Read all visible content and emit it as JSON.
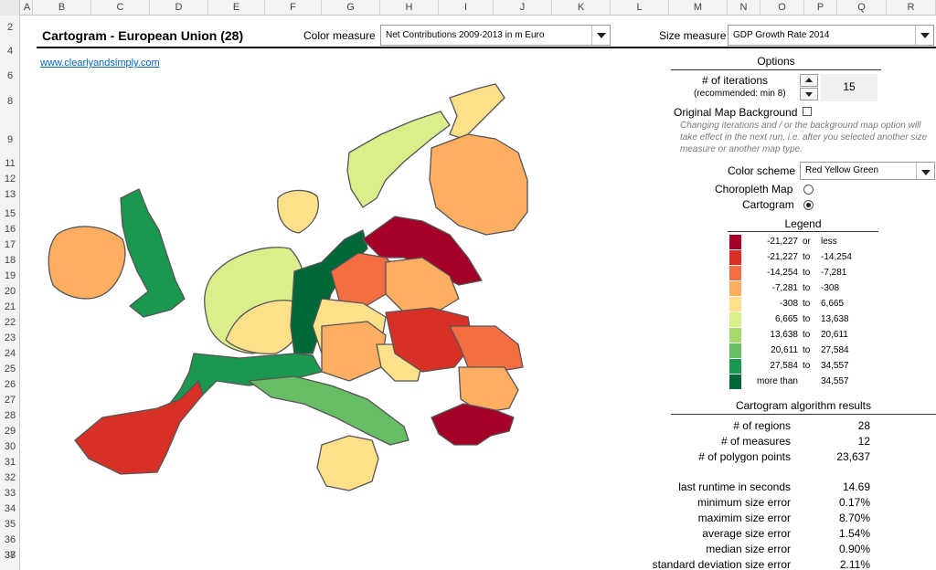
{
  "columns": [
    "A",
    "B",
    "C",
    "D",
    "E",
    "F",
    "G",
    "H",
    "I",
    "J",
    "K",
    "L",
    "M",
    "N",
    "O",
    "P",
    "Q",
    "R"
  ],
  "rows": [
    "2",
    "4",
    "6",
    "8",
    "9",
    "11",
    "12",
    "13",
    "15",
    "16",
    "17",
    "18",
    "19",
    "20",
    "21",
    "22",
    "23",
    "24",
    "25",
    "26",
    "27",
    "28",
    "29",
    "30",
    "31",
    "32",
    "33",
    "34",
    "35",
    "36",
    "37",
    "38"
  ],
  "header": {
    "title": "Cartogram - European Union (28)",
    "color_measure_label": "Color measure",
    "color_measure_value": "Net Contributions 2009-2013 in m Euro",
    "size_measure_label": "Size measure",
    "size_measure_value": "GDP Growth Rate 2014"
  },
  "link": "www.clearlyandsimply.com",
  "options": {
    "title": "Options",
    "iterations_label": "# of iterations",
    "iterations_hint": "(recommended: min 8)",
    "iterations_value": "15",
    "background_label": "Original Map Background",
    "note": "Changing iterations and / or the background map option will take effect in the next run, i.e. after you selected another size measure or another map type.",
    "color_scheme_label": "Color scheme",
    "color_scheme_value": "Red Yellow Green",
    "choropleth_label": "Choropleth Map",
    "cartogram_label": "Cartogram"
  },
  "legend": {
    "title": "Legend",
    "items": [
      {
        "color": "#a50026",
        "from": "-21,227",
        "sep": "or",
        "to": "less"
      },
      {
        "color": "#d73027",
        "from": "-21,227",
        "sep": "to",
        "to": "-14,254"
      },
      {
        "color": "#f46d43",
        "from": "-14,254",
        "sep": "to",
        "to": "-7,281"
      },
      {
        "color": "#fdae61",
        "from": "-7,281",
        "sep": "to",
        "to": "-308"
      },
      {
        "color": "#fee08b",
        "from": "-308",
        "sep": "to",
        "to": "6,665"
      },
      {
        "color": "#d9ef8b",
        "from": "6,665",
        "sep": "to",
        "to": "13,638"
      },
      {
        "color": "#a6d96a",
        "from": "13,638",
        "sep": "to",
        "to": "20,611"
      },
      {
        "color": "#66bd63",
        "from": "20,611",
        "sep": "to",
        "to": "27,584"
      },
      {
        "color": "#1a9850",
        "from": "27,584",
        "sep": "to",
        "to": "34,557"
      },
      {
        "color": "#006837",
        "from": "more than",
        "sep": "",
        "to": "34,557"
      }
    ]
  },
  "results": {
    "title": "Cartogram algorithm results",
    "items": [
      {
        "label": "# of regions",
        "value": "28"
      },
      {
        "label": "# of measures",
        "value": "12"
      },
      {
        "label": "# of polygon points",
        "value": "23,637"
      },
      {
        "label": "last runtime in seconds",
        "value": "14.69"
      },
      {
        "label": "minimum size error",
        "value": "0.17%"
      },
      {
        "label": "maximim size error",
        "value": "8.70%"
      },
      {
        "label": "average size error",
        "value": "1.54%"
      },
      {
        "label": "median size error",
        "value": "0.90%"
      },
      {
        "label": "standard deviation size error",
        "value": "2.11%"
      }
    ]
  }
}
